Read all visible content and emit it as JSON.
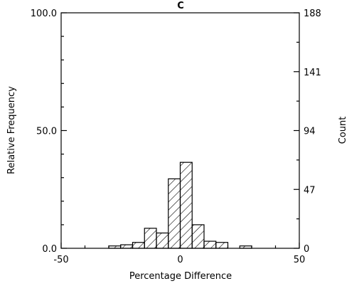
{
  "chart_data": {
    "type": "bar",
    "title": "C",
    "xlabel": "Percentage Difference",
    "ylabel_left": "Relative Frequency",
    "ylabel_right": "Count",
    "xlim": [
      -50,
      50
    ],
    "ylim_left": [
      0,
      100
    ],
    "ylim_right": [
      0,
      188
    ],
    "x_ticks": [
      "-50",
      "0",
      "50"
    ],
    "y_ticks_left": [
      "0.0",
      "50.0",
      "100.0"
    ],
    "y_ticks_right": [
      "0",
      "47",
      "94",
      "141",
      "188"
    ],
    "grid": false,
    "bin_width": 5,
    "bins": [
      {
        "start": -30,
        "value": 1
      },
      {
        "start": -25,
        "value": 1.5
      },
      {
        "start": -20,
        "value": 2.5
      },
      {
        "start": -15,
        "value": 8.5
      },
      {
        "start": -10,
        "value": 6.5
      },
      {
        "start": -5,
        "value": 29.5
      },
      {
        "start": 0,
        "value": 36.5
      },
      {
        "start": 5,
        "value": 10
      },
      {
        "start": 10,
        "value": 3
      },
      {
        "start": 15,
        "value": 2.5
      },
      {
        "start": 25,
        "value": 1
      }
    ]
  }
}
